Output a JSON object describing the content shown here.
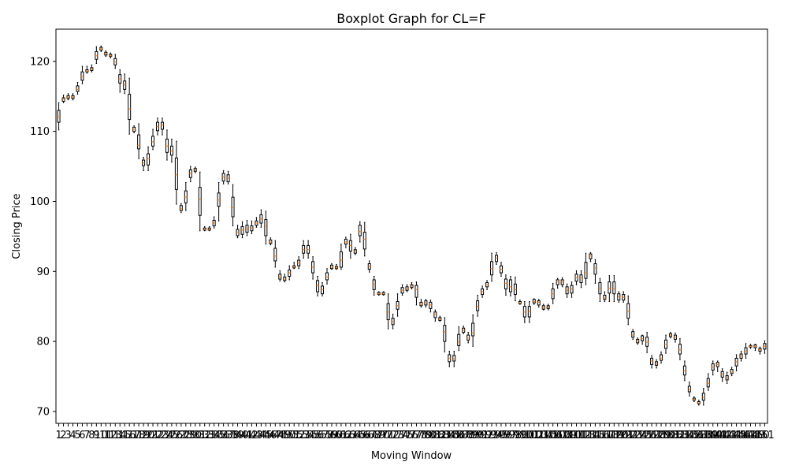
{
  "chart_data": {
    "type": "boxplot",
    "title": "Boxplot Graph for CL=F",
    "xlabel": "Moving Window",
    "ylabel": "Closing Price",
    "ylim": [
      68.3,
      124.6
    ],
    "yticks": [
      70,
      80,
      90,
      100,
      110,
      120
    ],
    "grid": false,
    "legend": false,
    "colors": {
      "box": "#000000",
      "median": "#ff7f0e",
      "axes": "#000000"
    },
    "categories": [
      "1",
      "2",
      "3",
      "4",
      "5",
      "6",
      "7",
      "8",
      "9",
      "10",
      "11",
      "12",
      "13",
      "14",
      "15",
      "16",
      "17",
      "18",
      "19",
      "20",
      "21",
      "22",
      "23",
      "24",
      "25",
      "26",
      "27",
      "28",
      "29",
      "30",
      "31",
      "32",
      "33",
      "34",
      "35",
      "36",
      "37",
      "38",
      "39",
      "40",
      "41",
      "42",
      "43",
      "44",
      "45",
      "46",
      "47",
      "48",
      "49",
      "50",
      "51",
      "52",
      "53",
      "54",
      "55",
      "56",
      "57",
      "58",
      "59",
      "60",
      "61",
      "62",
      "63",
      "64",
      "65",
      "66",
      "67",
      "68",
      "69",
      "70",
      "71",
      "72",
      "73",
      "74",
      "75",
      "76",
      "77",
      "78",
      "79",
      "80",
      "81",
      "82",
      "83",
      "84",
      "85",
      "86",
      "87",
      "88",
      "89",
      "90",
      "91",
      "92",
      "93",
      "94",
      "95",
      "96",
      "97",
      "98",
      "99",
      "100",
      "101",
      "102",
      "103",
      "104",
      "105",
      "106",
      "107",
      "108",
      "109",
      "110",
      "111",
      "112",
      "113",
      "114",
      "115",
      "116",
      "117",
      "118",
      "119",
      "120",
      "121",
      "122",
      "123",
      "124",
      "125",
      "126",
      "127",
      "128",
      "129",
      "130",
      "131",
      "132",
      "133",
      "134",
      "135",
      "136",
      "137",
      "138",
      "139",
      "140",
      "141",
      "142",
      "143",
      "144",
      "145",
      "146",
      "147",
      "148",
      "149",
      "150",
      "151"
    ],
    "medians": [
      112.1,
      114.6,
      114.9,
      114.9,
      116.0,
      117.8,
      118.6,
      118.9,
      120.8,
      121.8,
      121.1,
      120.8,
      119.9,
      117.5,
      116.7,
      113.2,
      110.3,
      108.0,
      105.5,
      106.1,
      108.5,
      110.7,
      110.9,
      107.9,
      107.2,
      103.8,
      99.0,
      100.6,
      104.0,
      104.5,
      100.3,
      96.0,
      96.0,
      96.9,
      100.2,
      103.5,
      103.3,
      99.1,
      95.6,
      95.9,
      96.1,
      96.2,
      96.9,
      97.5,
      96.5,
      94.2,
      92.2,
      89.2,
      88.9,
      89.8,
      90.6,
      91.2,
      93.1,
      93.1,
      90.6,
      88.0,
      87.4,
      89.2,
      90.6,
      90.5,
      91.6,
      94.2,
      93.7,
      92.9,
      95.7,
      94.6,
      90.7,
      88.1,
      86.8,
      86.8,
      84.2,
      82.8,
      85.1,
      87.3,
      87.5,
      87.9,
      87.4,
      85.3,
      85.5,
      85.2,
      83.9,
      83.2,
      81.4,
      77.6,
      77.5,
      79.9,
      81.6,
      80.5,
      81.2,
      85.0,
      87.1,
      88.1,
      90.4,
      91.9,
      90.3,
      88.3,
      87.8,
      87.4,
      85.5,
      84.2,
      84.3,
      85.7,
      85.6,
      84.8,
      84.9,
      86.8,
      88.5,
      88.5,
      87.3,
      87.5,
      89.1,
      89.1,
      89.8,
      92.2,
      90.5,
      87.6,
      86.2,
      87.6,
      87.5,
      86.4,
      86.3,
      84.3,
      80.9,
      80.1,
      80.4,
      79.9,
      77.2,
      76.8,
      77.6,
      79.6,
      80.9,
      80.6,
      78.8,
      75.8,
      73.1,
      71.7,
      71.2,
      72.0,
      74.0,
      76.3,
      76.7,
      75.3,
      74.8,
      75.6,
      77.1,
      77.9,
      78.6,
      79.3,
      79.3,
      78.8,
      79.3
    ],
    "box_low": [
      111.3,
      114.3,
      114.7,
      114.7,
      115.7,
      117.3,
      118.5,
      118.7,
      120.3,
      121.6,
      120.9,
      120.7,
      119.5,
      116.9,
      116.0,
      111.7,
      110.0,
      107.5,
      105.1,
      105.2,
      107.9,
      110.1,
      110.3,
      107.0,
      106.6,
      101.7,
      98.7,
      99.8,
      103.4,
      104.3,
      98.0,
      95.9,
      95.9,
      96.5,
      99.3,
      102.9,
      102.8,
      97.8,
      95.1,
      95.3,
      95.6,
      95.8,
      96.6,
      96.9,
      95.1,
      94.0,
      91.5,
      88.9,
      88.7,
      89.3,
      90.5,
      90.8,
      92.6,
      92.6,
      89.8,
      87.1,
      86.8,
      88.8,
      90.4,
      90.4,
      90.6,
      93.9,
      92.9,
      92.6,
      95.1,
      93.2,
      90.3,
      87.4,
      86.7,
      86.7,
      83.1,
      82.4,
      84.6,
      86.9,
      87.3,
      87.7,
      86.3,
      85.1,
      85.2,
      84.7,
      83.4,
      83.0,
      80.0,
      77.1,
      77.2,
      79.4,
      81.3,
      80.2,
      80.8,
      84.4,
      86.7,
      87.8,
      89.5,
      91.4,
      89.8,
      87.5,
      87.1,
      86.7,
      85.4,
      83.5,
      83.5,
      85.5,
      85.2,
      84.6,
      84.7,
      86.1,
      88.1,
      88.1,
      86.8,
      86.9,
      88.6,
      88.4,
      89.0,
      91.8,
      89.6,
      86.8,
      86.0,
      86.9,
      86.8,
      85.9,
      85.9,
      83.3,
      80.6,
      79.8,
      80.1,
      79.3,
      76.7,
      76.6,
      77.3,
      79.0,
      80.7,
      80.3,
      78.2,
      75.2,
      72.8,
      71.6,
      71.1,
      71.6,
      73.5,
      75.9,
      76.4,
      74.9,
      74.5,
      75.4,
      76.5,
      77.6,
      78.2,
      79.2,
      79.1,
      78.6,
      78.9
    ],
    "box_high": [
      113.0,
      114.8,
      115.1,
      115.1,
      116.5,
      118.5,
      118.8,
      119.1,
      121.4,
      122.0,
      121.3,
      121.0,
      120.4,
      118.1,
      117.2,
      115.3,
      110.6,
      109.5,
      105.9,
      106.8,
      109.3,
      111.3,
      111.3,
      108.9,
      107.9,
      106.2,
      99.4,
      101.5,
      104.5,
      104.7,
      102.0,
      96.2,
      96.2,
      97.3,
      101.2,
      104.0,
      103.8,
      100.6,
      96.0,
      96.4,
      96.6,
      96.5,
      97.2,
      98.1,
      97.4,
      94.5,
      93.3,
      89.6,
      89.2,
      90.2,
      90.8,
      91.6,
      93.7,
      93.7,
      91.4,
      88.7,
      87.9,
      89.8,
      90.9,
      90.7,
      92.8,
      94.6,
      94.4,
      93.1,
      96.6,
      95.6,
      91.1,
      88.8,
      87.0,
      87.0,
      85.4,
      83.3,
      85.7,
      87.7,
      87.8,
      88.1,
      88.0,
      85.6,
      85.8,
      85.6,
      84.2,
      83.4,
      82.3,
      78.1,
      78.0,
      81.0,
      81.9,
      80.9,
      82.6,
      85.8,
      87.5,
      88.4,
      91.4,
      92.3,
      90.8,
      88.9,
      88.8,
      88.2,
      85.7,
      85.0,
      85.0,
      86.0,
      85.8,
      85.1,
      85.1,
      87.5,
      88.8,
      88.8,
      87.8,
      88.0,
      89.6,
      89.5,
      91.3,
      92.5,
      91.1,
      88.4,
      86.6,
      88.5,
      88.5,
      86.8,
      86.7,
      85.4,
      81.4,
      80.3,
      80.8,
      80.6,
      77.6,
      77.1,
      78.1,
      80.2,
      81.1,
      80.9,
      79.6,
      76.5,
      73.6,
      71.9,
      71.4,
      72.6,
      74.7,
      76.8,
      77.0,
      75.7,
      75.1,
      76.0,
      77.6,
      78.2,
      79.1,
      79.4,
      79.5,
      79.0,
      79.7
    ],
    "whisker_low": [
      110.2,
      114.1,
      114.5,
      114.5,
      115.3,
      116.8,
      118.3,
      118.5,
      119.7,
      121.4,
      120.7,
      120.5,
      119.0,
      115.6,
      115.4,
      109.6,
      109.8,
      106.1,
      104.4,
      104.4,
      107.4,
      109.5,
      109.5,
      105.9,
      105.6,
      99.6,
      98.4,
      98.7,
      102.8,
      104.1,
      95.8,
      95.8,
      95.8,
      96.2,
      97.2,
      102.5,
      102.5,
      96.5,
      94.8,
      94.8,
      95.1,
      95.4,
      96.3,
      96.3,
      93.9,
      93.8,
      90.6,
      88.6,
      88.5,
      88.8,
      90.4,
      90.4,
      91.9,
      91.9,
      88.9,
      86.5,
      86.5,
      88.2,
      90.3,
      90.3,
      90.3,
      93.4,
      91.9,
      92.4,
      94.2,
      92.2,
      89.9,
      86.6,
      86.6,
      86.6,
      81.8,
      81.8,
      83.6,
      86.6,
      87.1,
      87.5,
      85.2,
      84.9,
      84.9,
      84.2,
      82.9,
      82.9,
      78.5,
      76.4,
      76.4,
      78.7,
      81.1,
      79.8,
      79.3,
      83.6,
      86.3,
      87.4,
      88.6,
      91.0,
      89.3,
      86.6,
      86.5,
      85.8,
      85.3,
      82.7,
      82.7,
      85.3,
      84.9,
      84.5,
      84.5,
      85.4,
      87.6,
      87.8,
      86.3,
      86.3,
      88.1,
      87.7,
      88.1,
      91.4,
      88.3,
      85.7,
      85.7,
      85.7,
      85.7,
      85.6,
      85.6,
      82.4,
      80.3,
      79.6,
      79.6,
      78.4,
      76.2,
      76.2,
      76.9,
      78.3,
      80.5,
      79.9,
      77.4,
      74.4,
      72.2,
      71.4,
      70.9,
      70.9,
      73.0,
      75.2,
      75.7,
      74.3,
      74.0,
      75.1,
      75.8,
      77.2,
      77.6,
      79.0,
      78.7,
      78.2,
      78.3
    ],
    "whisker_high": [
      114.1,
      115.2,
      115.4,
      115.4,
      117.0,
      119.3,
      119.3,
      119.5,
      122.1,
      122.2,
      121.5,
      121.2,
      121.0,
      118.8,
      118.2,
      117.6,
      110.8,
      111.1,
      106.3,
      107.8,
      110.3,
      111.9,
      111.9,
      110.2,
      108.9,
      108.6,
      99.7,
      102.7,
      105.0,
      104.9,
      104.2,
      96.4,
      96.4,
      97.8,
      102.7,
      104.4,
      104.3,
      102.4,
      96.6,
      97.1,
      97.3,
      97.2,
      97.7,
      98.8,
      98.6,
      94.8,
      94.4,
      90.1,
      89.6,
      90.8,
      91.3,
      92.1,
      94.4,
      94.4,
      92.1,
      89.3,
      88.4,
      90.4,
      91.1,
      91.0,
      93.9,
      94.9,
      95.3,
      93.4,
      97.1,
      97.0,
      91.5,
      89.3,
      87.1,
      87.1,
      86.8,
      83.9,
      86.8,
      88.1,
      88.1,
      88.4,
      88.5,
      86.0,
      86.0,
      85.9,
      84.5,
      83.6,
      83.4,
      78.6,
      78.6,
      82.1,
      82.2,
      81.3,
      83.8,
      86.6,
      87.9,
      88.7,
      92.6,
      92.7,
      91.3,
      89.5,
      89.3,
      89.2,
      85.9,
      85.7,
      85.7,
      86.1,
      86.0,
      85.3,
      85.3,
      88.3,
      89.0,
      89.1,
      88.2,
      88.5,
      90.1,
      90.1,
      92.6,
      92.7,
      91.7,
      89.0,
      87.1,
      89.4,
      89.4,
      87.1,
      87.1,
      86.5,
      81.7,
      80.5,
      80.9,
      81.3,
      78.0,
      77.4,
      78.5,
      80.9,
      81.3,
      81.2,
      80.4,
      77.2,
      74.2,
      72.1,
      71.6,
      73.3,
      75.4,
      77.2,
      77.2,
      76.1,
      75.6,
      76.3,
      78.1,
      78.6,
      79.7,
      79.6,
      79.6,
      79.2,
      80.1
    ]
  }
}
